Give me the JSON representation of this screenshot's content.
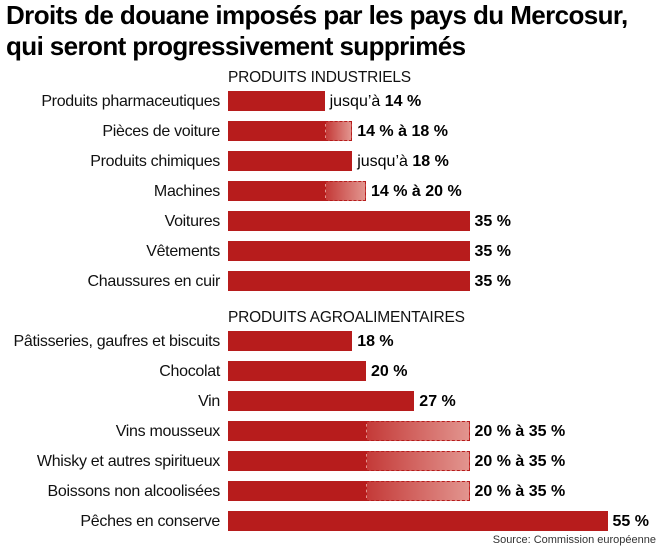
{
  "title": "Droits de douane imposés par les pays du Mercosur, qui seront progressivement supprimés",
  "source": "Source: Commission européenne",
  "colors": {
    "bar": "#b71c1c",
    "range_light": "#e2958f"
  },
  "chart_data": {
    "type": "bar",
    "orientation": "horizontal",
    "xlim": [
      0,
      55
    ],
    "unit": "%",
    "sections": [
      {
        "name": "PRODUITS INDUSTRIELS",
        "items": [
          {
            "category": "Produits pharmaceutiques",
            "min": 14,
            "max": 14,
            "prefix": "jusqu’à ",
            "label": "14 %"
          },
          {
            "category": "Pièces de voiture",
            "min": 14,
            "max": 18,
            "prefix": "",
            "label": "14 % à 18 %"
          },
          {
            "category": "Produits chimiques",
            "min": 18,
            "max": 18,
            "prefix": "jusqu’à ",
            "label": "18 %"
          },
          {
            "category": "Machines",
            "min": 14,
            "max": 20,
            "prefix": "",
            "label": "14 % à 20 %"
          },
          {
            "category": "Voitures",
            "min": 35,
            "max": 35,
            "prefix": "",
            "label": "35 %"
          },
          {
            "category": "Vêtements",
            "min": 35,
            "max": 35,
            "prefix": "",
            "label": "35 %"
          },
          {
            "category": "Chaussures en cuir",
            "min": 35,
            "max": 35,
            "prefix": "",
            "label": "35 %"
          }
        ]
      },
      {
        "name": "PRODUITS AGROALIMENTAIRES",
        "items": [
          {
            "category": "Pâtisseries, gaufres et biscuits",
            "min": 18,
            "max": 18,
            "prefix": "",
            "label": "18 %"
          },
          {
            "category": "Chocolat",
            "min": 20,
            "max": 20,
            "prefix": "",
            "label": "20 %"
          },
          {
            "category": "Vin",
            "min": 27,
            "max": 27,
            "prefix": "",
            "label": "27 %"
          },
          {
            "category": "Vins mousseux",
            "min": 20,
            "max": 35,
            "prefix": "",
            "label": "20 % à 35 %"
          },
          {
            "category": "Whisky et autres spiritueux",
            "min": 20,
            "max": 35,
            "prefix": "",
            "label": "20 % à 35 %"
          },
          {
            "category": "Boissons non alcoolisées",
            "min": 20,
            "max": 35,
            "prefix": "",
            "label": "20 % à 35 %"
          },
          {
            "category": "Pêches en conserve",
            "min": 55,
            "max": 55,
            "prefix": "",
            "label": "55 %"
          }
        ]
      }
    ]
  }
}
